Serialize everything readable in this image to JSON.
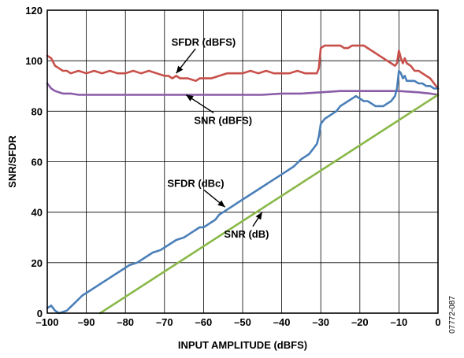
{
  "chart_data": {
    "type": "line",
    "xlabel": "INPUT AMPLITUDE (dBFS)",
    "ylabel": "SNR/SFDR",
    "xlim": [
      -100,
      0
    ],
    "ylim": [
      0,
      120
    ],
    "xticks": [
      -100,
      -90,
      -80,
      -70,
      -60,
      -50,
      -40,
      -30,
      -20,
      -10,
      0
    ],
    "xtick_labels": [
      "–100",
      "–90",
      "–80",
      "–70",
      "–60",
      "–50",
      "–40",
      "–30",
      "–20",
      "–10",
      "0"
    ],
    "yticks": [
      0,
      20,
      40,
      60,
      80,
      100,
      120
    ],
    "ytick_labels": [
      "0",
      "20",
      "40",
      "60",
      "80",
      "100",
      "120"
    ],
    "grid": true,
    "legend": "none",
    "series": [
      {
        "name": "SFDR (dBFS)",
        "color": "#c8504b",
        "x": [
          -100,
          -99,
          -98,
          -97,
          -96,
          -95,
          -94,
          -92,
          -90,
          -88,
          -86,
          -84,
          -82,
          -80,
          -78,
          -76,
          -74,
          -72,
          -70,
          -69,
          -68,
          -67,
          -66,
          -64,
          -62,
          -61,
          -60,
          -58,
          -56,
          -54,
          -52,
          -50,
          -48,
          -46,
          -44,
          -42,
          -40,
          -38,
          -36,
          -34,
          -32,
          -31,
          -30.5,
          -30,
          -29,
          -28,
          -27,
          -26,
          -25,
          -24,
          -23,
          -22,
          -21,
          -20,
          -19,
          -18,
          -17,
          -16,
          -15,
          -14,
          -13,
          -12,
          -11,
          -10.5,
          -10,
          -9.5,
          -9,
          -8.5,
          -8,
          -7,
          -6,
          -5,
          -4,
          -3,
          -2,
          -1,
          0
        ],
        "values": [
          102,
          101,
          98,
          97,
          96,
          96,
          95,
          96,
          95,
          96,
          95,
          96,
          95,
          95,
          96,
          95,
          96,
          95,
          94,
          94,
          93,
          94,
          93,
          93,
          92,
          93,
          93,
          93,
          94,
          95,
          95,
          95,
          96,
          95,
          96,
          95,
          95,
          95,
          96,
          95,
          95,
          95,
          97,
          105,
          106,
          106,
          106,
          106,
          106,
          105,
          105,
          106,
          106,
          106,
          106,
          105,
          104,
          103,
          102,
          101,
          100,
          99,
          98,
          99,
          104,
          101,
          99,
          101,
          99,
          98,
          96,
          96,
          95,
          94,
          93,
          91,
          89
        ]
      },
      {
        "name": "SNR (dBFS)",
        "color": "#8a5ca8",
        "x": [
          -100,
          -99,
          -98,
          -96,
          -94,
          -92,
          -90,
          -85,
          -80,
          -75,
          -70,
          -65,
          -60,
          -55,
          -50,
          -45,
          -40,
          -35,
          -30,
          -25,
          -20,
          -15,
          -10,
          -5,
          -2,
          0
        ],
        "values": [
          91,
          89,
          88,
          87,
          87,
          86.5,
          86.5,
          86.5,
          86.5,
          86.5,
          86.5,
          86.5,
          86.5,
          86.5,
          86.5,
          86.5,
          87,
          87,
          87.5,
          88,
          88,
          88,
          88,
          87.5,
          87,
          86.5
        ]
      },
      {
        "name": "SFDR (dBc)",
        "color": "#4a7fb8",
        "x": [
          -100,
          -99,
          -98,
          -97,
          -95,
          -93,
          -91,
          -89,
          -87,
          -85,
          -83,
          -81,
          -79,
          -77,
          -75,
          -73,
          -71,
          -69,
          -67,
          -65,
          -63,
          -62,
          -61,
          -60,
          -59,
          -58,
          -57,
          -56,
          -55,
          -53,
          -51,
          -49,
          -47,
          -45,
          -43,
          -41,
          -39,
          -37,
          -35,
          -33,
          -31,
          -30.5,
          -30,
          -29,
          -28,
          -27,
          -26,
          -25,
          -24,
          -23,
          -22,
          -21,
          -20,
          -19,
          -18,
          -17,
          -16,
          -15,
          -14,
          -13,
          -12,
          -11,
          -10.5,
          -10,
          -9.5,
          -9,
          -8.5,
          -8,
          -7,
          -6,
          -5,
          -4,
          -3,
          -2,
          -1,
          0
        ],
        "values": [
          2,
          3,
          1,
          0,
          1,
          4,
          7,
          9,
          11,
          13,
          15,
          17,
          19,
          20,
          22,
          24,
          25,
          27,
          29,
          30,
          32,
          33,
          34,
          34,
          35,
          36,
          37,
          39,
          40,
          42,
          44,
          46,
          48,
          50,
          52,
          54,
          56,
          58,
          61,
          63,
          67,
          70,
          75,
          77,
          78,
          79,
          80,
          82,
          83,
          84,
          85,
          86,
          85,
          84,
          84,
          83,
          82,
          82,
          82,
          83,
          84,
          86,
          89,
          96,
          95,
          93,
          94,
          92,
          92,
          92,
          91,
          91,
          90,
          90,
          89,
          89
        ]
      },
      {
        "name": "SNR (dB)",
        "color": "#8ab848",
        "x": [
          -86.5,
          0
        ],
        "values": [
          0,
          86.5
        ]
      }
    ],
    "annotations": [
      {
        "text": "SFDR (dBFS)",
        "x": -60,
        "y": 106,
        "arrow_to": [
          -67,
          95
        ]
      },
      {
        "text": "SNR (dBFS)",
        "x": -55,
        "y": 75,
        "arrow_to": [
          -64.5,
          86.5
        ]
      },
      {
        "text": "SFDR (dBc)",
        "x": -62,
        "y": 50,
        "arrow_to": [
          -54.5,
          42
        ]
      },
      {
        "text": "SNR (dB)",
        "x": -49,
        "y": 30,
        "arrow_to": [
          -45,
          40
        ]
      }
    ],
    "figure_id": "07772-087"
  }
}
